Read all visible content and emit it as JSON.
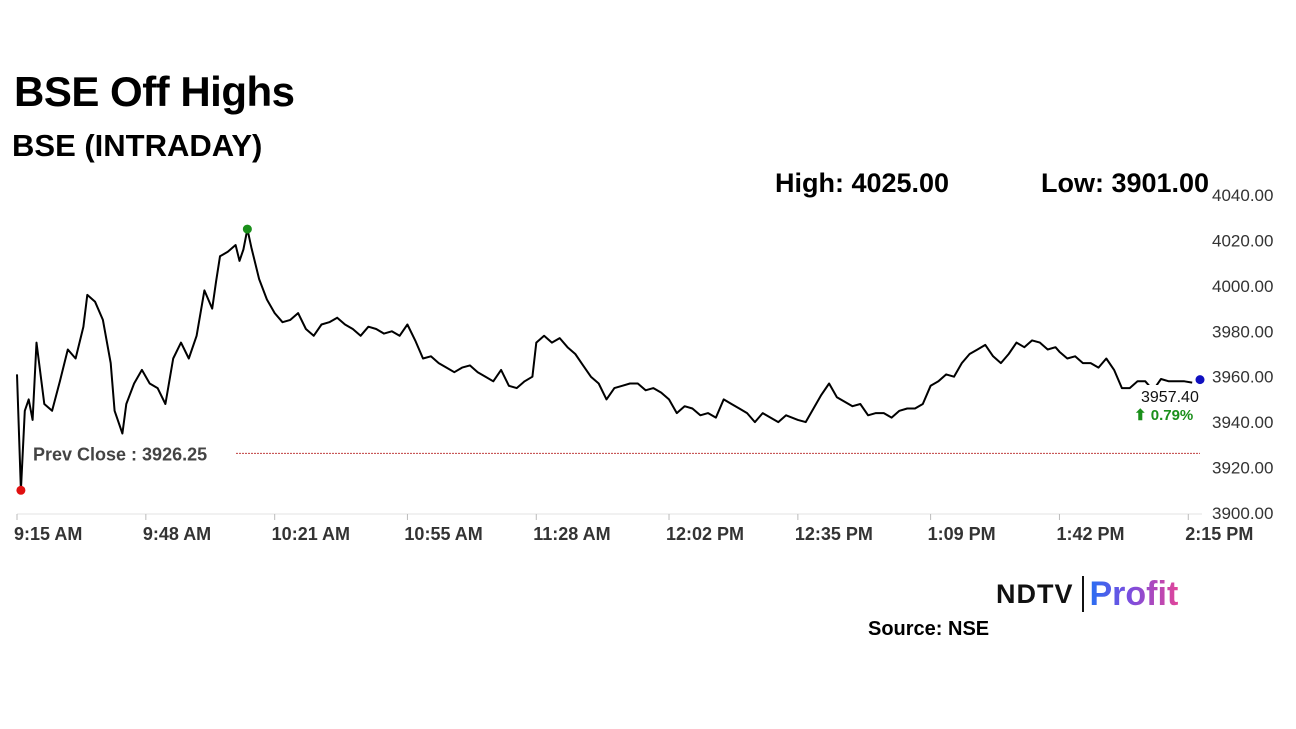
{
  "header": {
    "title": "BSE Off Highs",
    "subtitle": "BSE (INTRADAY)",
    "high_text": "High: 4025.00",
    "low_text": "Low: 3901.00"
  },
  "footer": {
    "logo_ndtv": "NDTV",
    "logo_profit": "Profit",
    "source": "Source: NSE"
  },
  "colors": {
    "line": "#000000",
    "high_marker": "#1a8f1a",
    "low_marker": "#e01010",
    "last_marker": "#1010c0",
    "prev_close_line": "#c04040",
    "change_positive": "#1a8f1a"
  },
  "chart_data": {
    "type": "line",
    "title": "BSE (INTRADAY)",
    "ylim": [
      3900,
      4040
    ],
    "y_ticks": [
      "4040.00",
      "4020.00",
      "4000.00",
      "3980.00",
      "3960.00",
      "3940.00",
      "3920.00",
      "3900.00"
    ],
    "x_ticks": [
      "9:15 AM",
      "9:48 AM",
      "10:21 AM",
      "10:55 AM",
      "11:28 AM",
      "12:02 PM",
      "12:35 PM",
      "1:09 PM",
      "1:42 PM",
      "2:15 PM"
    ],
    "prev_close": 3926.25,
    "prev_close_label": "Prev Close : 3926.25",
    "last_value_label": "3957.40",
    "change_label": "⬆ 0.79%",
    "high": 4025.0,
    "low": 3901.0,
    "series": [
      {
        "points": [
          [
            "9:15 AM",
            3961
          ],
          [
            "9:16 AM",
            3910
          ],
          [
            "9:17 AM",
            3945
          ],
          [
            "9:18 AM",
            3950
          ],
          [
            "9:19 AM",
            3941
          ],
          [
            "9:20 AM",
            3975
          ],
          [
            "9:22 AM",
            3948
          ],
          [
            "9:24 AM",
            3945
          ],
          [
            "9:26 AM",
            3958
          ],
          [
            "9:28 AM",
            3972
          ],
          [
            "9:30 AM",
            3968
          ],
          [
            "9:32 AM",
            3982
          ],
          [
            "9:33 AM",
            3996
          ],
          [
            "9:35 AM",
            3993
          ],
          [
            "9:37 AM",
            3985
          ],
          [
            "9:39 AM",
            3966
          ],
          [
            "9:40 AM",
            3945
          ],
          [
            "9:42 AM",
            3935
          ],
          [
            "9:43 AM",
            3948
          ],
          [
            "9:45 AM",
            3957
          ],
          [
            "9:47 AM",
            3963
          ],
          [
            "9:49 AM",
            3957
          ],
          [
            "9:51 AM",
            3955
          ],
          [
            "9:53 AM",
            3948
          ],
          [
            "9:55 AM",
            3968
          ],
          [
            "9:57 AM",
            3975
          ],
          [
            "9:59 AM",
            3968
          ],
          [
            "10:01 AM",
            3978
          ],
          [
            "10:03 AM",
            3998
          ],
          [
            "10:05 AM",
            3990
          ],
          [
            "10:06 AM",
            4002
          ],
          [
            "10:07 AM",
            4013
          ],
          [
            "10:09 AM",
            4015
          ],
          [
            "10:11 AM",
            4018
          ],
          [
            "10:12 AM",
            4011
          ],
          [
            "10:13 AM",
            4016
          ],
          [
            "10:14 AM",
            4025
          ],
          [
            "10:15 AM",
            4017
          ],
          [
            "10:17 AM",
            4003
          ],
          [
            "10:19 AM",
            3994
          ],
          [
            "10:21 AM",
            3988
          ],
          [
            "10:23 AM",
            3984
          ],
          [
            "10:25 AM",
            3985
          ],
          [
            "10:27 AM",
            3988
          ],
          [
            "10:29 AM",
            3981
          ],
          [
            "10:31 AM",
            3978
          ],
          [
            "10:33 AM",
            3983
          ],
          [
            "10:35 AM",
            3984
          ],
          [
            "10:37 AM",
            3986
          ],
          [
            "10:39 AM",
            3983
          ],
          [
            "10:41 AM",
            3981
          ],
          [
            "10:43 AM",
            3978
          ],
          [
            "10:45 AM",
            3982
          ],
          [
            "10:47 AM",
            3981
          ],
          [
            "10:49 AM",
            3979
          ],
          [
            "10:51 AM",
            3980
          ],
          [
            "10:53 AM",
            3978
          ],
          [
            "10:55 AM",
            3983
          ],
          [
            "10:57 AM",
            3976
          ],
          [
            "10:59 AM",
            3968
          ],
          [
            "11:01 AM",
            3969
          ],
          [
            "11:03 AM",
            3966
          ],
          [
            "11:05 AM",
            3964
          ],
          [
            "11:07 AM",
            3962
          ],
          [
            "11:09 AM",
            3964
          ],
          [
            "11:11 AM",
            3965
          ],
          [
            "11:13 AM",
            3962
          ],
          [
            "11:15 AM",
            3960
          ],
          [
            "11:17 AM",
            3958
          ],
          [
            "11:19 AM",
            3963
          ],
          [
            "11:21 AM",
            3956
          ],
          [
            "11:23 AM",
            3955
          ],
          [
            "11:25 AM",
            3958
          ],
          [
            "11:27 AM",
            3960
          ],
          [
            "11:28 AM",
            3975
          ],
          [
            "11:30 AM",
            3978
          ],
          [
            "11:32 AM",
            3975
          ],
          [
            "11:34 AM",
            3977
          ],
          [
            "11:36 AM",
            3973
          ],
          [
            "11:38 AM",
            3970
          ],
          [
            "11:40 AM",
            3965
          ],
          [
            "11:42 AM",
            3960
          ],
          [
            "11:44 AM",
            3957
          ],
          [
            "11:46 AM",
            3950
          ],
          [
            "11:48 AM",
            3955
          ],
          [
            "11:50 AM",
            3956
          ],
          [
            "11:52 AM",
            3957
          ],
          [
            "11:54 AM",
            3957
          ],
          [
            "11:56 AM",
            3954
          ],
          [
            "11:58 AM",
            3955
          ],
          [
            "12:00 PM",
            3953
          ],
          [
            "12:02 PM",
            3950
          ],
          [
            "12:04 PM",
            3944
          ],
          [
            "12:06 PM",
            3947
          ],
          [
            "12:08 PM",
            3946
          ],
          [
            "12:10 PM",
            3943
          ],
          [
            "12:12 PM",
            3944
          ],
          [
            "12:14 PM",
            3942
          ],
          [
            "12:16 PM",
            3950
          ],
          [
            "12:18 PM",
            3948
          ],
          [
            "12:20 PM",
            3946
          ],
          [
            "12:22 PM",
            3944
          ],
          [
            "12:24 PM",
            3940
          ],
          [
            "12:26 PM",
            3944
          ],
          [
            "12:28 PM",
            3942
          ],
          [
            "12:30 PM",
            3940
          ],
          [
            "12:32 PM",
            3943
          ],
          [
            "12:35 PM",
            3941
          ],
          [
            "12:37 PM",
            3940
          ],
          [
            "12:39 PM",
            3946
          ],
          [
            "12:41 PM",
            3952
          ],
          [
            "12:43 PM",
            3957
          ],
          [
            "12:45 PM",
            3951
          ],
          [
            "12:47 PM",
            3949
          ],
          [
            "12:49 PM",
            3947
          ],
          [
            "12:51 PM",
            3948
          ],
          [
            "12:53 PM",
            3943
          ],
          [
            "12:55 PM",
            3944
          ],
          [
            "12:57 PM",
            3944
          ],
          [
            "12:59 PM",
            3942
          ],
          [
            "1:01 PM",
            3945
          ],
          [
            "1:03 PM",
            3946
          ],
          [
            "1:05 PM",
            3946
          ],
          [
            "1:07 PM",
            3948
          ],
          [
            "1:09 PM",
            3956
          ],
          [
            "1:11 PM",
            3958
          ],
          [
            "1:13 PM",
            3961
          ],
          [
            "1:15 PM",
            3960
          ],
          [
            "1:17 PM",
            3966
          ],
          [
            "1:19 PM",
            3970
          ],
          [
            "1:21 PM",
            3972
          ],
          [
            "1:23 PM",
            3974
          ],
          [
            "1:25 PM",
            3969
          ],
          [
            "1:27 PM",
            3966
          ],
          [
            "1:29 PM",
            3970
          ],
          [
            "1:31 PM",
            3975
          ],
          [
            "1:33 PM",
            3973
          ],
          [
            "1:35 PM",
            3976
          ],
          [
            "1:37 PM",
            3975
          ],
          [
            "1:39 PM",
            3972
          ],
          [
            "1:41 PM",
            3973
          ],
          [
            "1:42 PM",
            3971
          ],
          [
            "1:44 PM",
            3968
          ],
          [
            "1:46 PM",
            3969
          ],
          [
            "1:48 PM",
            3966
          ],
          [
            "1:50 PM",
            3966
          ],
          [
            "1:52 PM",
            3964
          ],
          [
            "1:54 PM",
            3968
          ],
          [
            "1:56 PM",
            3963
          ],
          [
            "1:58 PM",
            3955
          ],
          [
            "2:00 PM",
            3955
          ],
          [
            "2:02 PM",
            3958
          ],
          [
            "2:04 PM",
            3958
          ],
          [
            "2:06 PM",
            3954
          ],
          [
            "2:08 PM",
            3959
          ],
          [
            "2:10 PM",
            3958
          ],
          [
            "2:12 PM",
            3958
          ],
          [
            "2:14 PM",
            3958
          ],
          [
            "2:16 PM",
            3957.4
          ]
        ]
      }
    ]
  }
}
